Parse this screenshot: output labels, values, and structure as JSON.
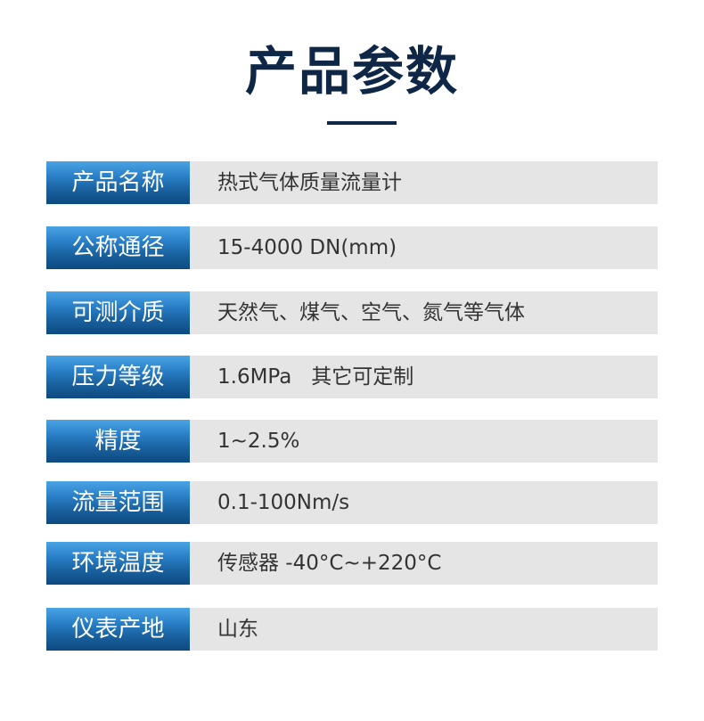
{
  "title": "产品参数",
  "colors": {
    "title": "#0f2746",
    "label_bg": "#1a62a0",
    "value_bg": "#e5e5e5"
  },
  "rows": [
    {
      "label": "产品名称",
      "value": "热式气体质量流量计"
    },
    {
      "label": "公称通径",
      "value": "15-4000 DN(mm)"
    },
    {
      "label": "可测介质",
      "value": "天然气、煤气、空气、氮气等气体"
    },
    {
      "label": "压力等级",
      "value": "1.6MPa   其它可定制"
    },
    {
      "label": "精度",
      "value": "1~2.5%"
    },
    {
      "label": "流量范围",
      "value": "0.1-100Nm/s"
    },
    {
      "label": "环境温度",
      "value": "传感器 -40°C~+220°C"
    },
    {
      "label": "仪表产地",
      "value": "山东"
    }
  ]
}
